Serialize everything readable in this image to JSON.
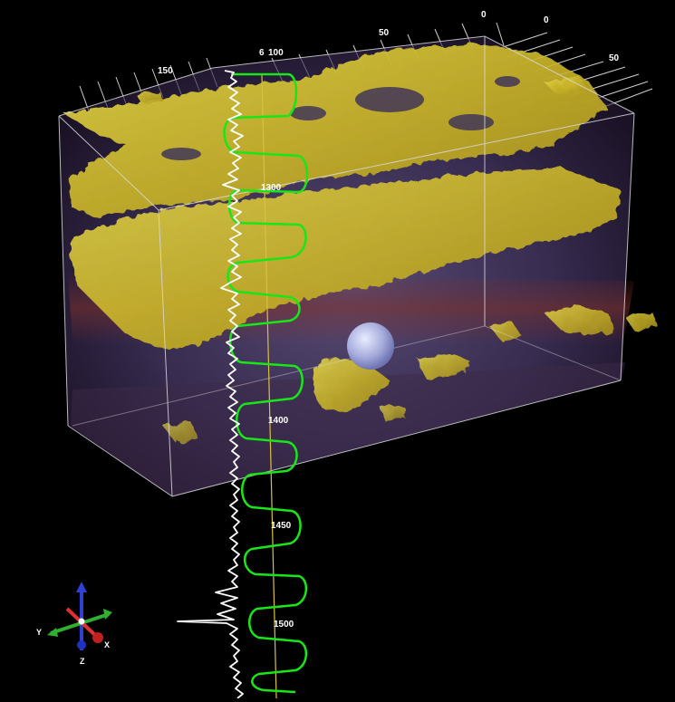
{
  "viewer": {
    "top_axis_labels": [
      "0",
      "0",
      "50",
      "50",
      "6",
      "100",
      "150"
    ],
    "depth_labels": [
      "1300",
      "1400",
      "1450",
      "1500"
    ],
    "orientation_axes": {
      "y": "Y",
      "x": "X",
      "z": "Z"
    },
    "colors": {
      "background": "#000000",
      "isosurface": "#d8c830",
      "gamma_log": "#ffffff",
      "synthetic_trace": "#19e619",
      "well_line": "#d9c040",
      "marker_sphere": "#a9aee0",
      "box_edges": "#d8d8d8",
      "axis_x": "#e03030",
      "axis_y": "#30b030",
      "axis_z": "#3040d0"
    }
  }
}
